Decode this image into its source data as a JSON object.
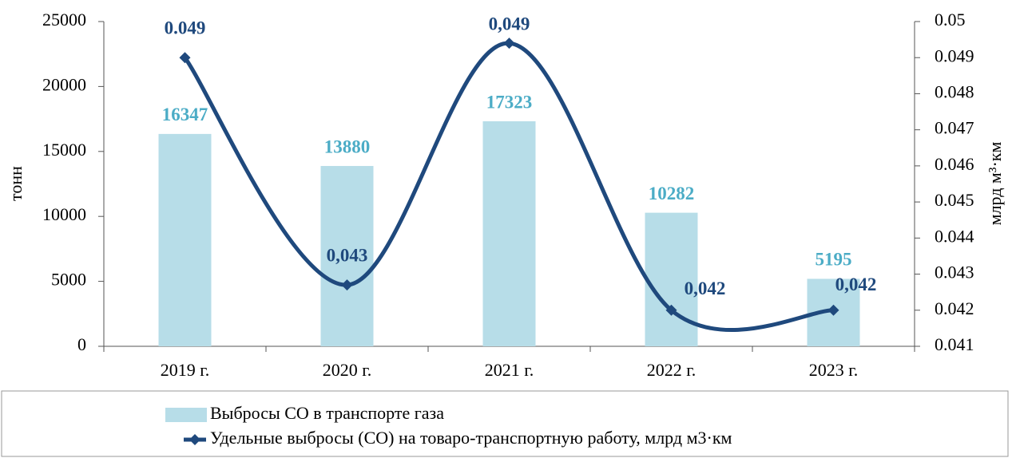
{
  "chart_data": {
    "type": "bar+line",
    "categories": [
      "2019 г.",
      "2020 г.",
      "2021 г.",
      "2022 г.",
      "2023 г."
    ],
    "ylabel": "тонн",
    "y2label": "млрд м³·км",
    "ylim": [
      0,
      25000
    ],
    "yticks": [
      0,
      5000,
      10000,
      15000,
      20000,
      25000
    ],
    "y2lim": [
      0.041,
      0.05
    ],
    "y2ticks": [
      0.041,
      0.042,
      0.043,
      0.044,
      0.045,
      0.046,
      0.047,
      0.048,
      0.049,
      0.05
    ],
    "legend": "bottom",
    "series": [
      {
        "name": "Выбросы CO в транспорте газа",
        "type": "bar",
        "color": "#b7dde8",
        "label_color": "#4bacc6",
        "values": [
          16347,
          13880,
          17323,
          10282,
          5195
        ]
      },
      {
        "name": "Удельные выбросы (CO) на товаро-транспортную работу, млрд м3·км",
        "type": "line",
        "axis": "y2",
        "color": "#1f497d",
        "values": [
          0.049,
          0.0427,
          0.0494,
          0.042,
          0.042
        ],
        "value_labels": [
          "0.049",
          "0,043",
          "0,049",
          "0,042",
          "0,042"
        ]
      }
    ]
  }
}
